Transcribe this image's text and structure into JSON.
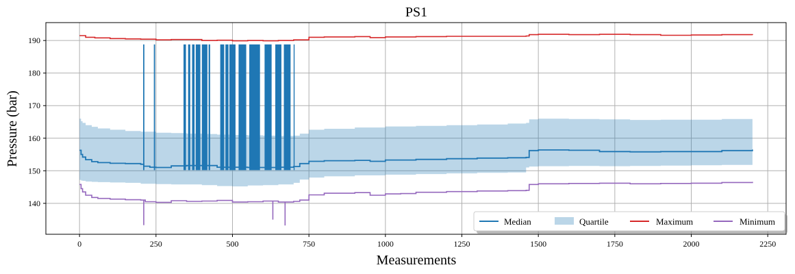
{
  "chart_data": {
    "type": "line",
    "title": "PS1",
    "xlabel": "Measurements",
    "ylabel": "Pressure (bar)",
    "xlim": [
      -110,
      2310
    ],
    "ylim": [
      130.5,
      195.5
    ],
    "xticks": [
      0,
      250,
      500,
      750,
      1000,
      1250,
      1500,
      1750,
      2000,
      2250
    ],
    "yticks": [
      140,
      150,
      160,
      170,
      180,
      190
    ],
    "grid": true,
    "legend_position": "lower-right",
    "legend": [
      "Median",
      "Quartile",
      "Maximum",
      "Minimum"
    ],
    "colors": {
      "median": "#1f77b4",
      "quartile": "#1f77b4",
      "maximum": "#d62728",
      "minimum": "#9467bd"
    },
    "series": [
      {
        "name": "Maximum",
        "x": [
          0,
          20,
          50,
          100,
          150,
          200,
          250,
          300,
          350,
          400,
          450,
          500,
          550,
          600,
          650,
          700,
          750,
          800,
          900,
          950,
          1000,
          1100,
          1200,
          1300,
          1400,
          1460,
          1470,
          1500,
          1600,
          1700,
          1800,
          1900,
          2000,
          2100,
          2200
        ],
        "values": [
          191.5,
          191.0,
          190.8,
          190.6,
          190.5,
          190.4,
          190.2,
          190.3,
          190.3,
          190.0,
          190.1,
          189.9,
          190.0,
          189.9,
          190.0,
          190.2,
          191.0,
          191.1,
          191.2,
          190.9,
          191.1,
          191.2,
          191.3,
          191.3,
          191.3,
          191.4,
          191.8,
          191.9,
          191.8,
          191.9,
          191.8,
          191.6,
          191.7,
          191.8,
          191.7
        ]
      },
      {
        "name": "Minimum",
        "x": [
          0,
          5,
          10,
          20,
          40,
          60,
          100,
          150,
          200,
          215,
          250,
          300,
          350,
          400,
          450,
          500,
          550,
          600,
          650,
          700,
          720,
          750,
          800,
          900,
          950,
          1000,
          1050,
          1100,
          1200,
          1300,
          1400,
          1460,
          1470,
          1500,
          1600,
          1700,
          1800,
          1900,
          2000,
          2100,
          2200
        ],
        "values": [
          145.8,
          144.5,
          143.5,
          142.5,
          141.8,
          141.5,
          141.3,
          141.1,
          141.0,
          140.5,
          140.3,
          140.8,
          140.6,
          140.7,
          140.9,
          140.4,
          140.5,
          140.7,
          140.4,
          140.6,
          141.0,
          142.6,
          143.1,
          143.3,
          142.5,
          142.9,
          143.0,
          143.4,
          143.6,
          143.8,
          143.9,
          144.0,
          145.8,
          146.0,
          146.1,
          146.2,
          146.0,
          146.1,
          146.2,
          146.4,
          146.6
        ],
        "dips": [
          {
            "x": 210,
            "y": 133.3
          },
          {
            "x": 632,
            "y": 135.0
          },
          {
            "x": 672,
            "y": 133.2
          }
        ]
      },
      {
        "name": "Median",
        "x": [
          0,
          5,
          10,
          20,
          40,
          60,
          100,
          150,
          200,
          210,
          230,
          250,
          300,
          350,
          450,
          550,
          650,
          700,
          720,
          750,
          800,
          900,
          950,
          1000,
          1100,
          1200,
          1300,
          1400,
          1460,
          1470,
          1500,
          1600,
          1700,
          1800,
          1900,
          2000,
          2100,
          2200
        ],
        "values": [
          156.3,
          155.0,
          154.2,
          153.4,
          152.8,
          152.5,
          152.3,
          152.2,
          152.0,
          151.4,
          151.1,
          151.0,
          151.5,
          151.6,
          151.1,
          151.0,
          151.1,
          151.3,
          152.2,
          152.9,
          153.1,
          153.2,
          152.9,
          153.3,
          153.5,
          153.7,
          153.9,
          154.0,
          154.1,
          156.2,
          156.4,
          156.3,
          155.9,
          155.8,
          155.9,
          155.9,
          156.2,
          156.5
        ],
        "spike_top": 188.8,
        "spike_bottom": 150.2,
        "spike_ranges": [
          [
            208,
            212
          ],
          [
            243,
            247
          ],
          [
            340,
            348
          ],
          [
            355,
            362
          ],
          [
            368,
            376
          ],
          [
            380,
            395
          ],
          [
            400,
            418
          ],
          [
            422,
            427
          ],
          [
            460,
            473
          ],
          [
            477,
            487
          ],
          [
            490,
            510
          ],
          [
            520,
            545
          ],
          [
            555,
            590
          ],
          [
            605,
            628
          ],
          [
            640,
            660
          ],
          [
            668,
            690
          ],
          [
            700,
            702
          ]
        ]
      },
      {
        "name": "Quartile",
        "x": [
          0,
          5,
          10,
          20,
          40,
          60,
          100,
          150,
          200,
          250,
          300,
          350,
          400,
          450,
          500,
          550,
          600,
          650,
          700,
          720,
          750,
          800,
          900,
          1000,
          1100,
          1200,
          1300,
          1400,
          1460,
          1470,
          1500,
          1600,
          1700,
          1800,
          1900,
          2000,
          2100,
          2200
        ],
        "lower": [
          147.5,
          147.2,
          147.0,
          146.9,
          146.7,
          146.6,
          146.5,
          146.4,
          146.3,
          146.0,
          145.9,
          145.8,
          145.8,
          145.6,
          145.3,
          145.2,
          145.5,
          145.6,
          145.8,
          146.3,
          147.3,
          147.9,
          148.3,
          148.6,
          148.8,
          149.0,
          149.2,
          149.4,
          149.5,
          151.0,
          151.3,
          151.4,
          151.5,
          151.4,
          151.5,
          151.6,
          151.7,
          151.8
        ],
        "upper": [
          166.0,
          165.2,
          164.7,
          164.0,
          163.5,
          163.0,
          162.6,
          162.2,
          162.0,
          161.7,
          161.6,
          161.4,
          161.3,
          161.1,
          161.0,
          160.9,
          160.8,
          160.7,
          160.8,
          161.4,
          162.6,
          162.9,
          163.3,
          163.6,
          163.8,
          164.0,
          164.2,
          164.5,
          164.7,
          165.8,
          166.0,
          165.9,
          165.8,
          165.6,
          165.7,
          165.7,
          165.9,
          166.1
        ]
      }
    ]
  }
}
